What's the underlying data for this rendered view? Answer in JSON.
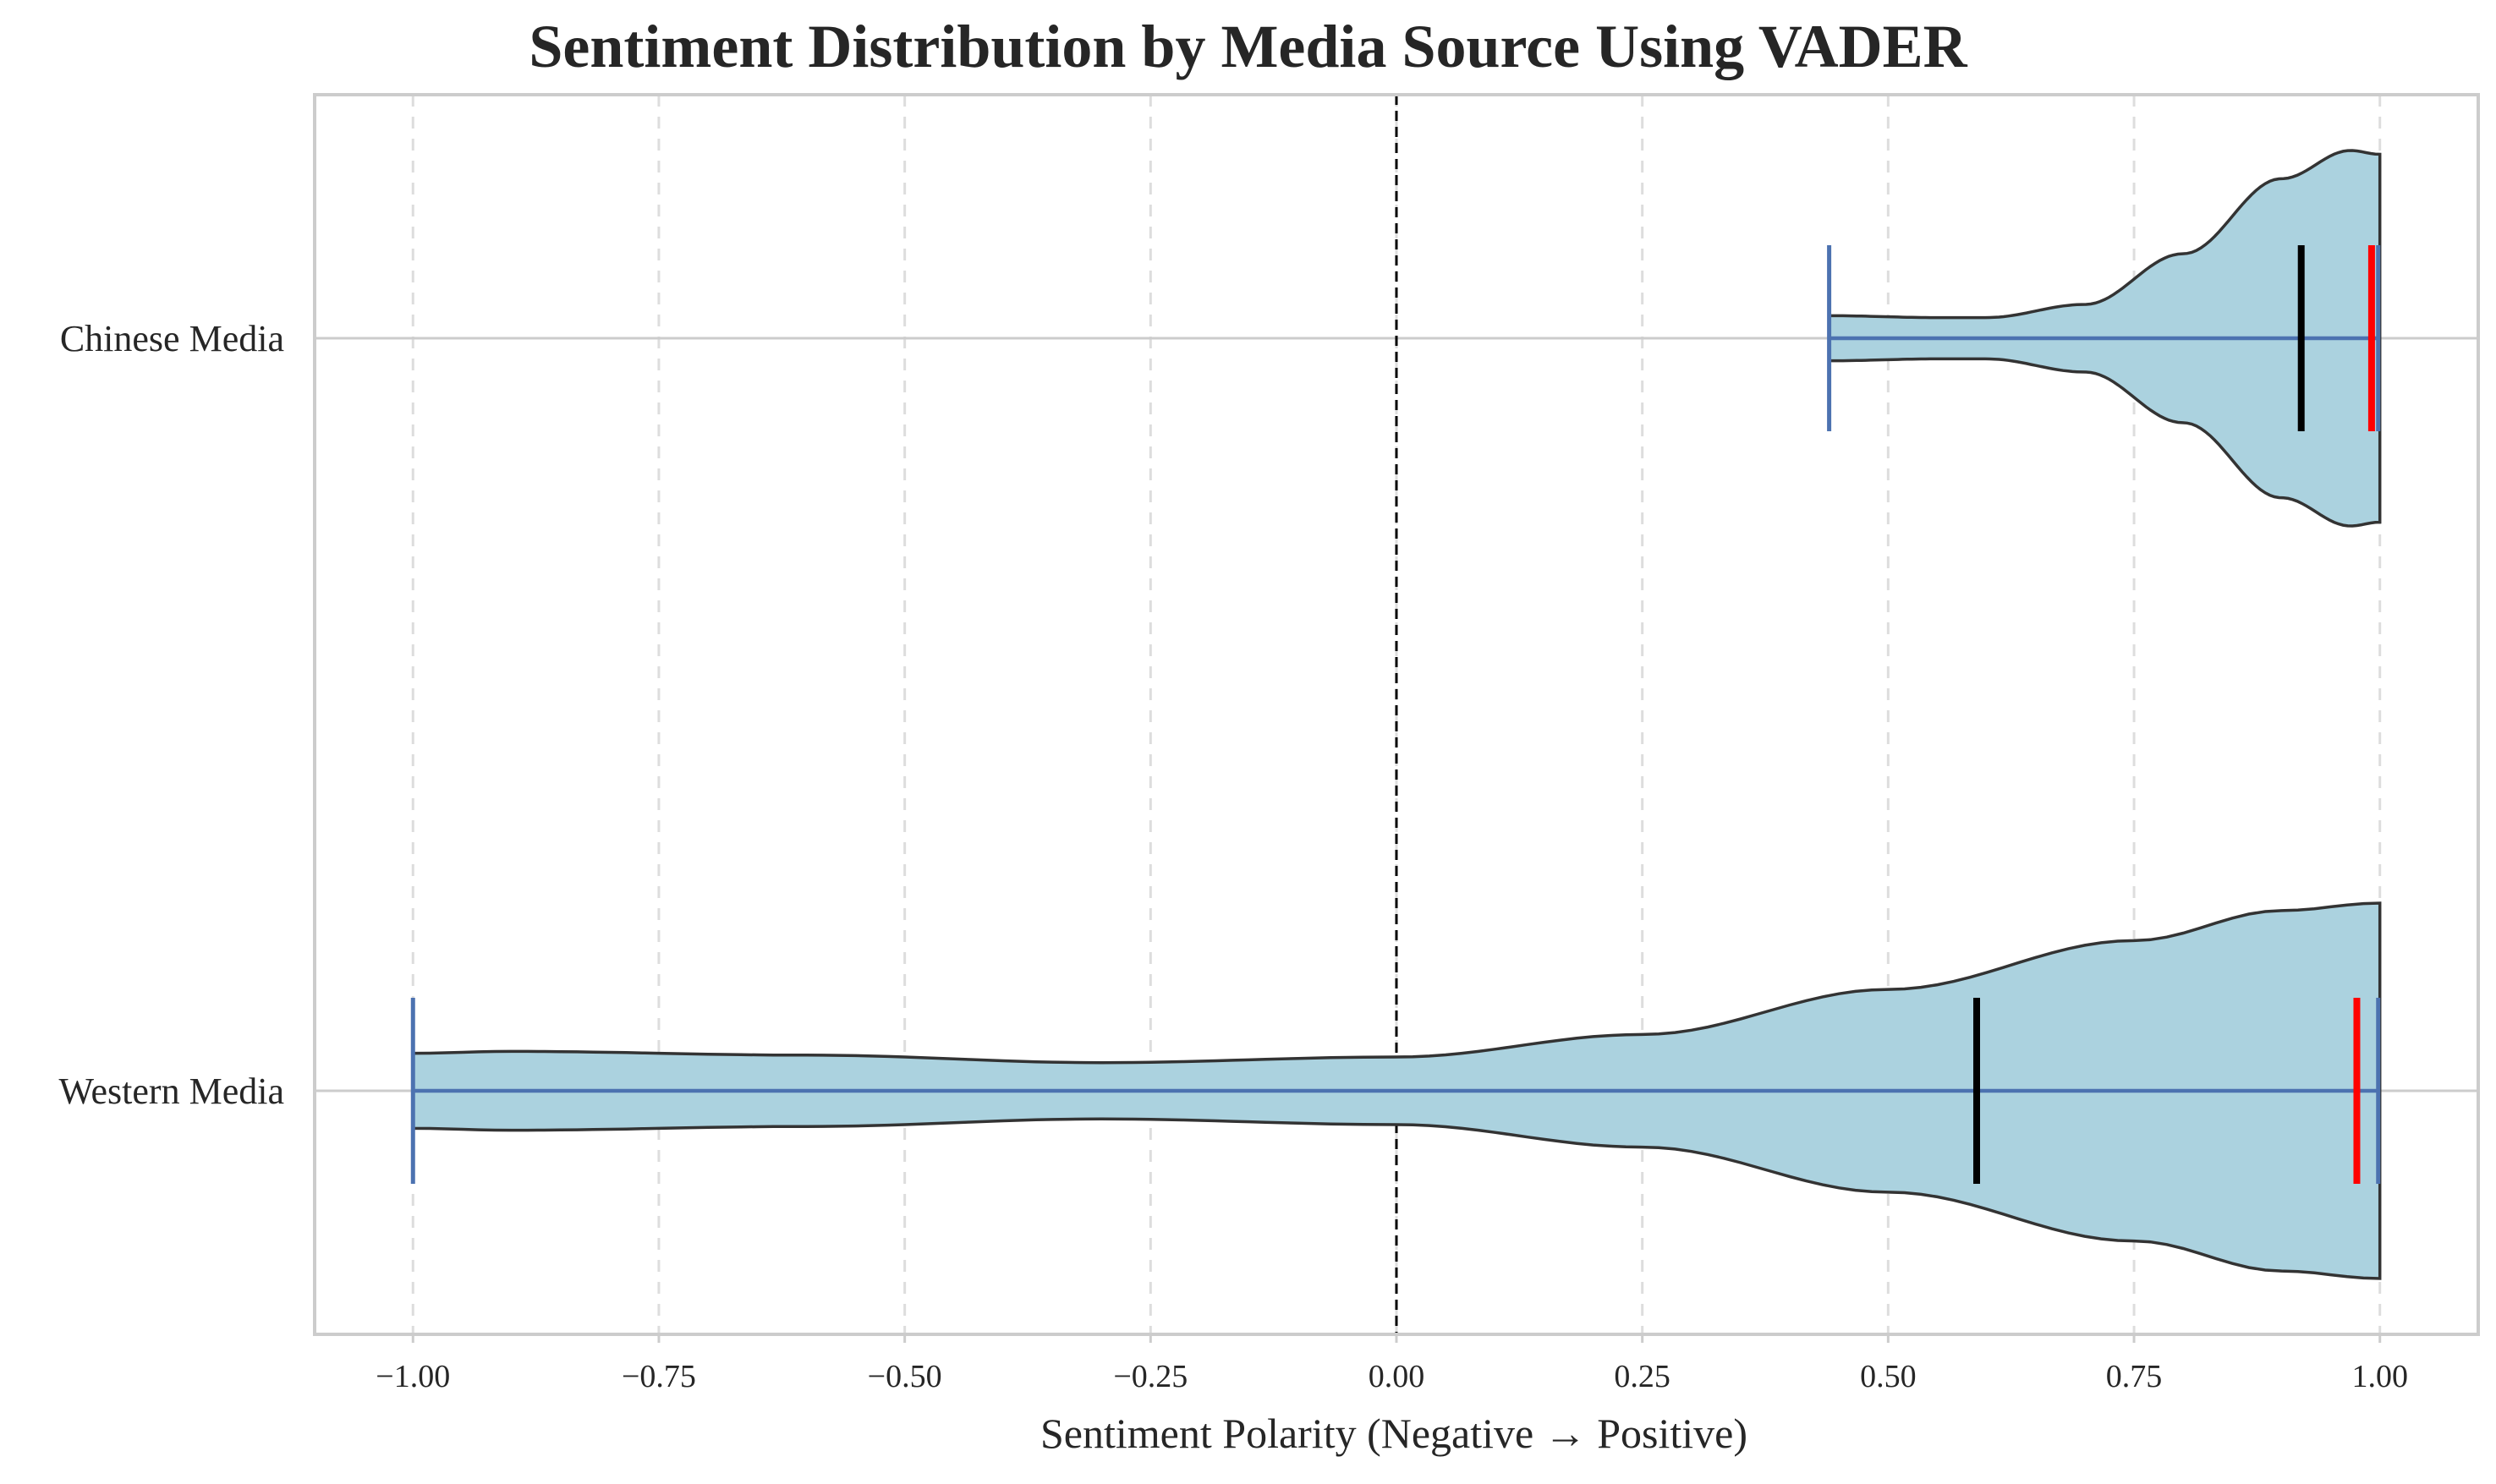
{
  "chart_data": {
    "type": "violin",
    "orientation": "horizontal",
    "title": "Sentiment Distribution by Media Source Using VADER",
    "xlabel": "Sentiment Polarity (Negative → Positive)",
    "ylabel": "",
    "xlim": [
      -1.1,
      1.1
    ],
    "x_ticks": [
      -1.0,
      -0.75,
      -0.5,
      -0.25,
      0.0,
      0.25,
      0.5,
      0.75,
      1.0
    ],
    "x_tick_labels": [
      "−1.00",
      "−0.75",
      "−0.50",
      "−0.25",
      "0.00",
      "0.25",
      "0.50",
      "0.75",
      "1.00"
    ],
    "grid": "x-dashed",
    "reference_line": {
      "x": 0.0,
      "style": "dashed",
      "color": "#000000"
    },
    "colors": {
      "fill": "#abd2df",
      "outline": "#333333",
      "whisker": "#4c72b0",
      "median": "#000000",
      "mode": "#ff0000"
    },
    "categories": [
      "Chinese Media",
      "Western Media"
    ],
    "series": [
      {
        "category": "Chinese Media",
        "min": 0.44,
        "max": 1.0,
        "median": 0.92,
        "peak": 0.995,
        "density_profile": [
          [
            0.44,
            0.12
          ],
          [
            0.55,
            0.11
          ],
          [
            0.6,
            0.11
          ],
          [
            0.7,
            0.18
          ],
          [
            0.8,
            0.45
          ],
          [
            0.9,
            0.85
          ],
          [
            0.97,
            1.0
          ],
          [
            1.0,
            0.98
          ]
        ]
      },
      {
        "category": "Western Media",
        "min": -1.0,
        "max": 1.0,
        "median": 0.59,
        "peak": 0.98,
        "density_profile": [
          [
            -1.0,
            0.2
          ],
          [
            -0.9,
            0.21
          ],
          [
            -0.6,
            0.19
          ],
          [
            -0.3,
            0.15
          ],
          [
            0.0,
            0.18
          ],
          [
            0.25,
            0.3
          ],
          [
            0.5,
            0.54
          ],
          [
            0.75,
            0.8
          ],
          [
            0.9,
            0.96
          ],
          [
            1.0,
            1.0
          ]
        ]
      }
    ]
  }
}
